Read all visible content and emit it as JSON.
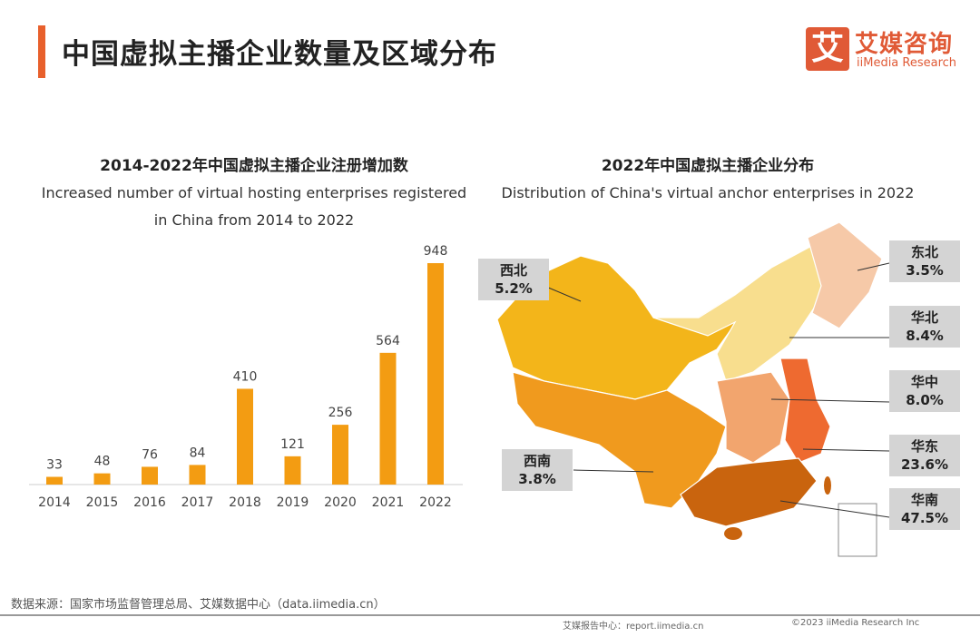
{
  "header": {
    "title": "中国虚拟主播企业数量及区域分布",
    "logo_mark": "艾",
    "logo_cn": "艾媒咨询",
    "logo_en": "iiMedia Research"
  },
  "chart_data": [
    {
      "type": "bar",
      "title": "2014-2022年中国虚拟主播企业注册增加数",
      "subtitle": "Increased number of virtual hosting enterprises registered in China from 2014 to 2022",
      "subtitle_line1": "Increased number of virtual hosting enterprises registered",
      "subtitle_line2": "in China from 2014 to 2022",
      "categories": [
        "2014",
        "2015",
        "2016",
        "2017",
        "2018",
        "2019",
        "2020",
        "2021",
        "2022"
      ],
      "values": [
        33,
        48,
        76,
        84,
        410,
        121,
        256,
        564,
        948
      ],
      "color": "#F39C12",
      "ylim": [
        0,
        948
      ],
      "grid": false
    },
    {
      "type": "map",
      "title": "2022年中国虚拟主播企业分布",
      "subtitle": "Distribution of China's virtual anchor enterprises in 2022",
      "regions": [
        {
          "name": "西北",
          "value": "5.2%",
          "color": "#F3B51A"
        },
        {
          "name": "东北",
          "value": "3.5%",
          "color": "#F6C9A8"
        },
        {
          "name": "华北",
          "value": "8.4%",
          "color": "#F8DE8E"
        },
        {
          "name": "华中",
          "value": "8.0%",
          "color": "#F2A56E"
        },
        {
          "name": "华东",
          "value": "23.6%",
          "color": "#EE6A30"
        },
        {
          "name": "西南",
          "value": "3.8%",
          "color": "#F09A1E"
        },
        {
          "name": "华南",
          "value": "47.5%",
          "color": "#C9640E"
        }
      ]
    }
  ],
  "footer": {
    "source": "数据来源：国家市场监督管理总局、艾媒数据中心（data.iimedia.cn）",
    "report": "艾媒报告中心：report.iimedia.cn",
    "copyright": "©2023  iiMedia Research  Inc"
  }
}
